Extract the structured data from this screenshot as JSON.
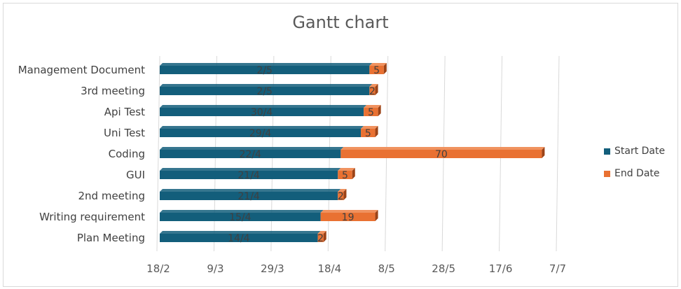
{
  "chart_data": {
    "type": "bar",
    "orientation": "horizontal",
    "stacked": true,
    "title": "Gantt chart",
    "categories": [
      "Plan Meeting",
      "Writing requirement",
      "2nd meeting",
      "GUI",
      "Coding",
      "Uni Test",
      "Api Test",
      "3rd meeting",
      "Management Document"
    ],
    "series": [
      {
        "name": "Start Date",
        "color": "#135e7b",
        "values": [
          "2025-04-14",
          "2025-04-15",
          "2025-04-21",
          "2025-04-21",
          "2025-04-22",
          "2025-04-29",
          "2025-04-30",
          "2025-05-02",
          "2025-05-02"
        ],
        "labels": [
          "14/4",
          "15/4",
          "21/4",
          "21/4",
          "22/4",
          "29/4",
          "30/4",
          "2/5",
          "2/5"
        ]
      },
      {
        "name": "End Date",
        "color": "#e97132",
        "values": [
          2,
          19,
          2,
          5,
          70,
          5,
          5,
          2,
          5
        ],
        "labels": [
          "2",
          "19",
          "2",
          "5",
          "70",
          "5",
          "5",
          "2",
          "5"
        ]
      }
    ],
    "x_axis": {
      "type": "date",
      "range": [
        "2025-02-18",
        "2025-07-07"
      ],
      "tick_labels": [
        "18/2",
        "9/3",
        "29/3",
        "18/4",
        "8/5",
        "28/5",
        "17/6",
        "7/7"
      ]
    },
    "grid": true,
    "legend_position": "right"
  }
}
